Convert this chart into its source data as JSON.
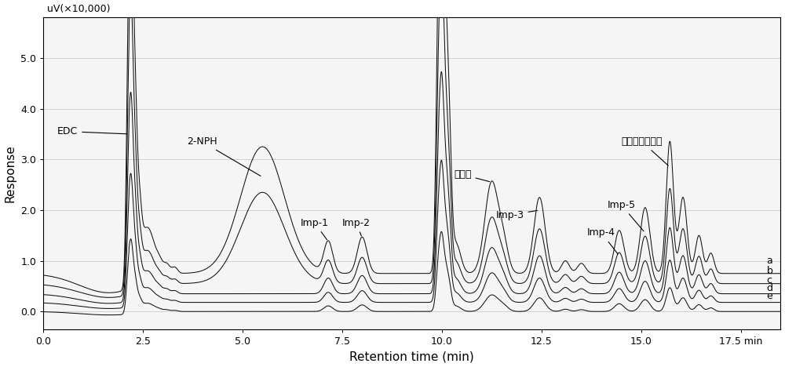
{
  "ylabel": "Response",
  "xlabel": "Retention time (min)",
  "yunits": "uV(×10,000)",
  "xlim": [
    0.0,
    18.5
  ],
  "ylim": [
    -0.35,
    5.8
  ],
  "yticks": [
    0.0,
    1.0,
    2.0,
    3.0,
    4.0,
    5.0
  ],
  "xticks": [
    0.0,
    2.5,
    5.0,
    7.5,
    10.0,
    12.5,
    15.0,
    17.5
  ],
  "trace_labels": [
    "a",
    "b",
    "c",
    "d",
    "e"
  ],
  "trace_offsets": [
    0.75,
    0.55,
    0.35,
    0.18,
    0.0
  ],
  "trace_scales": [
    1.0,
    0.72,
    0.5,
    0.32,
    0.18
  ],
  "line_color": "#111111",
  "bg_color": "#f5f5f5",
  "fontsize_label": 11,
  "fontsize_annot": 9,
  "fontsize_units": 9
}
